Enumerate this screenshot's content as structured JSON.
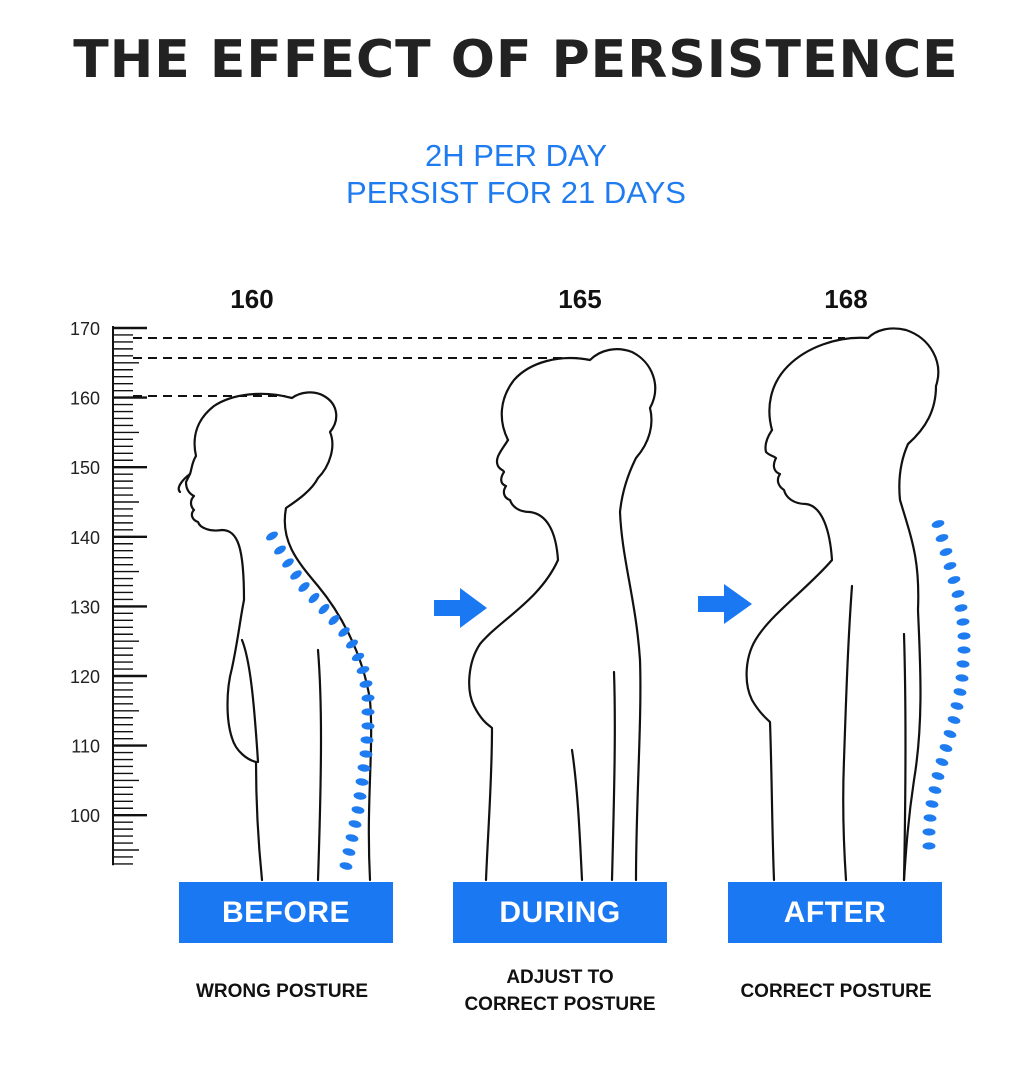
{
  "title": "THE EFFECT OF PERSISTENCE",
  "subtitle": {
    "line1": "2H PER DAY",
    "line2": "PERSIST FOR 21 DAYS"
  },
  "colors": {
    "accent": "#1a78f2",
    "subtitle": "#1f7cf0",
    "spine_dot": "#1f7cf0"
  },
  "ruler": {
    "ticks": [
      "170",
      "160",
      "150",
      "140",
      "130",
      "120",
      "110",
      "100"
    ]
  },
  "stages": [
    {
      "height": "160",
      "badge": "BEFORE",
      "caption_lines": [
        "WRONG POSTURE"
      ]
    },
    {
      "height": "165",
      "badge": "DURING",
      "caption_lines": [
        "ADJUST TO",
        "CORRECT POSTURE"
      ]
    },
    {
      "height": "168",
      "badge": "AFTER",
      "caption_lines": [
        "CORRECT POSTURE"
      ]
    }
  ],
  "arrows": [
    "arrow-right-icon",
    "arrow-right-icon"
  ]
}
